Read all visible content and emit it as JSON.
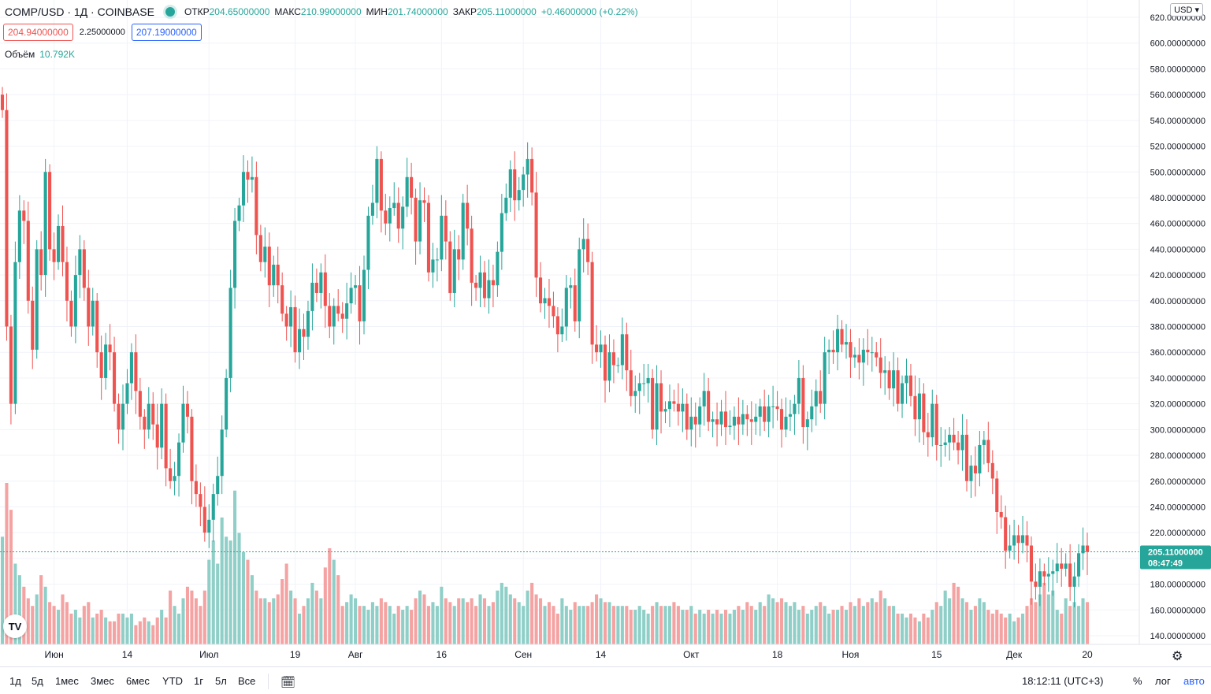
{
  "header": {
    "symbol": "COMP/USD · 1Д · COINBASE",
    "open_label": "ОТКР",
    "open_value": "204.65000000",
    "high_label": "МАКС",
    "high_value": "210.99000000",
    "low_label": "МИН",
    "low_value": "201.74000000",
    "close_label": "ЗАКР",
    "close_value": "205.11000000",
    "change": "+0.46000000 (+0.22%)"
  },
  "trade": {
    "sell": "204.94000000",
    "spread": "2.25000000",
    "buy": "207.19000000"
  },
  "volume": {
    "label": "Объём",
    "value": "10.792K"
  },
  "currency": "USD",
  "price_label": {
    "value": "205.11000000",
    "countdown": "08:47:49"
  },
  "bottom": {
    "ranges": [
      "1д",
      "5д",
      "1мес",
      "3мес",
      "6мес",
      "YTD",
      "1г",
      "5л",
      "Все"
    ],
    "time": "18:12:11 (UTC+3)",
    "pct": "%",
    "log": "лог",
    "auto": "авто"
  },
  "colors": {
    "up": "#26a69a",
    "down": "#ef5350",
    "vol_up": "#8fcfc8",
    "vol_down": "#f4a3a2",
    "grid": "#f0f3fa"
  },
  "chart_data": {
    "type": "candlestick",
    "title": "COMP/USD · 1Д · COINBASE",
    "y_axis": {
      "min": 140,
      "max": 620,
      "ticks": [
        "620.00000000",
        "600.00000000",
        "580.00000000",
        "560.00000000",
        "540.00000000",
        "520.00000000",
        "500.00000000",
        "480.00000000",
        "460.00000000",
        "440.00000000",
        "420.00000000",
        "400.00000000",
        "380.00000000",
        "360.00000000",
        "340.00000000",
        "320.00000000",
        "300.00000000",
        "280.00000000",
        "260.00000000",
        "240.00000000",
        "220.00000000",
        "200.00000000",
        "180.00000000",
        "160.00000000",
        "140.00000000"
      ]
    },
    "x_labels": [
      "Июн",
      "14",
      "Июл",
      "19",
      "Авг",
      "16",
      "Сен",
      "14",
      "Окт",
      "18",
      "Ноя",
      "15",
      "Дек",
      "20"
    ],
    "last_close": 205.11,
    "closes": [
      548,
      380,
      320,
      430,
      470,
      462,
      400,
      362,
      440,
      420,
      500,
      440,
      430,
      458,
      430,
      400,
      380,
      420,
      440,
      410,
      380,
      400,
      360,
      340,
      366,
      360,
      320,
      300,
      320,
      336,
      360,
      330,
      310,
      300,
      320,
      304,
      286,
      320,
      270,
      260,
      264,
      290,
      320,
      310,
      260,
      250,
      240,
      220,
      230,
      250,
      264,
      300,
      340,
      410,
      462,
      474,
      500,
      494,
      496,
      451,
      430,
      442,
      412,
      428,
      412,
      390,
      380,
      395,
      360,
      378,
      372,
      392,
      414,
      406,
      422,
      396,
      380,
      396,
      390,
      386,
      398,
      410,
      412,
      384,
      424,
      466,
      476,
      510,
      470,
      460,
      472,
      476,
      456,
      473,
      496,
      480,
      446,
      478,
      476,
      422,
      432,
      432,
      466,
      446,
      406,
      440,
      432,
      476,
      456,
      414,
      410,
      422,
      402,
      416,
      412,
      438,
      468,
      480,
      502,
      478,
      486,
      498,
      510,
      484,
      418,
      398,
      402,
      396,
      388,
      374,
      380,
      410,
      412,
      384,
      440,
      448,
      430,
      366,
      360,
      366,
      338,
      360,
      350,
      350,
      374,
      346,
      326,
      330,
      336,
      336,
      340,
      300,
      336,
      314,
      316,
      322,
      320,
      314,
      320,
      300,
      310,
      304,
      318,
      330,
      306,
      308,
      304,
      314,
      302,
      303,
      310,
      304,
      312,
      308,
      306,
      310,
      318,
      306,
      318,
      318,
      316,
      300,
      310,
      312,
      320,
      340,
      302,
      308,
      318,
      330,
      320,
      360,
      362,
      360,
      378,
      366,
      368,
      356,
      358,
      352,
      362,
      360,
      360,
      356,
      344,
      346,
      332,
      346,
      320,
      336,
      342,
      326,
      308,
      328,
      298,
      294,
      320,
      288,
      288,
      290,
      296,
      290,
      284,
      296,
      260,
      272,
      266,
      288,
      292,
      274,
      262,
      236,
      232,
      206,
      210,
      218,
      212,
      218,
      210,
      182,
      178,
      190,
      186,
      188,
      190,
      196,
      192,
      196,
      178,
      186,
      204,
      210,
      205.11
    ],
    "volumes": [
      2.8,
      4.2,
      3.5,
      2.1,
      1.8,
      1.5,
      1.2,
      1.0,
      1.3,
      1.8,
      1.5,
      1.1,
      1.0,
      0.9,
      1.3,
      1.1,
      0.8,
      0.9,
      0.7,
      1.0,
      1.1,
      0.7,
      0.8,
      0.9,
      0.7,
      0.6,
      0.6,
      0.8,
      0.8,
      0.7,
      0.8,
      0.5,
      0.6,
      0.7,
      0.6,
      0.5,
      0.7,
      0.9,
      0.7,
      1.4,
      1.0,
      0.8,
      1.2,
      1.5,
      1.4,
      1.2,
      1.0,
      1.4,
      2.2,
      2.7,
      2.1,
      3.3,
      2.8,
      2.7,
      4.0,
      2.9,
      2.4,
      2.2,
      1.8,
      1.4,
      1.2,
      1.2,
      1.1,
      1.2,
      1.3,
      1.7,
      2.1,
      1.4,
      1.2,
      0.8,
      1.0,
      1.2,
      1.6,
      1.4,
      1.2,
      2.0,
      2.5,
      2.2,
      1.8,
      1.0,
      1.1,
      1.3,
      1.2,
      1.0,
      1.0,
      0.9,
      1.1,
      1.0,
      1.2,
      1.1,
      1.0,
      0.8,
      1.0,
      0.9,
      1.0,
      0.9,
      1.2,
      1.4,
      1.3,
      1.0,
      1.1,
      1.0,
      1.5,
      1.2,
      1.1,
      1.0,
      1.2,
      1.2,
      1.1,
      1.2,
      1.0,
      1.3,
      1.2,
      1.0,
      1.1,
      1.4,
      1.6,
      1.5,
      1.3,
      1.2,
      1.1,
      1.0,
      1.4,
      1.6,
      1.3,
      1.2,
      1.0,
      1.1,
      1.0,
      0.8,
      1.2,
      1.0,
      0.9,
      1.1,
      1.0,
      1.0,
      1.0,
      1.1,
      1.3,
      1.2,
      1.1,
      1.1,
      1.0,
      1.0,
      1.0,
      1.0,
      0.9,
      0.9,
      1.0,
      0.9,
      0.8,
      1.0,
      1.1,
      1.0,
      1.0,
      1.0,
      1.1,
      1.0,
      0.9,
      0.9,
      1.0,
      0.8,
      0.9,
      0.8,
      0.9,
      0.8,
      0.9,
      0.8,
      0.9,
      0.8,
      0.9,
      1.0,
      0.9,
      1.1,
      1.0,
      0.9,
      1.1,
      1.0,
      1.3,
      1.2,
      1.1,
      1.2,
      1.1,
      1.0,
      1.1,
      0.9,
      1.0,
      0.8,
      0.9,
      1.0,
      1.1,
      1.0,
      0.8,
      0.9,
      0.9,
      1.0,
      0.9,
      1.1,
      1.0,
      1.2,
      1.0,
      1.1,
      1.2,
      1.1,
      1.4,
      1.2,
      1.0,
      1.0,
      0.8,
      0.8,
      0.7,
      0.8,
      0.7,
      0.6,
      0.8,
      0.7,
      0.9,
      1.1,
      1.0,
      1.4,
      1.2,
      1.6,
      1.5,
      1.2,
      1.1,
      0.9,
      1.0,
      1.2,
      1.1,
      0.9,
      0.8,
      0.9,
      0.8,
      0.7,
      0.8,
      0.6,
      0.7,
      0.8,
      1.0,
      1.2,
      1.1,
      1.3,
      1.6,
      1.3,
      1.4,
      0.9,
      0.8,
      1.2,
      1.0,
      1.1,
      1.0,
      1.2,
      1.1,
      0.6,
      0.3
    ]
  }
}
